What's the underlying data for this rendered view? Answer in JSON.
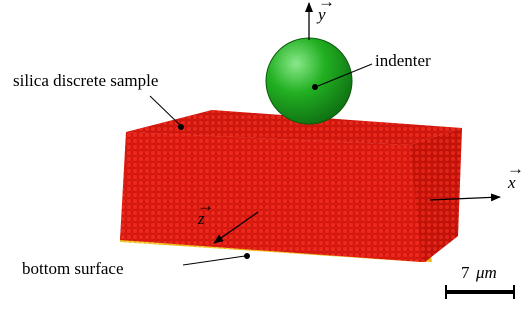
{
  "labels": {
    "sample": "silica discrete sample",
    "indenter": "indenter",
    "bottom": "bottom surface"
  },
  "axes": {
    "x": "x",
    "y": "y",
    "z": "z"
  },
  "scale_bar": {
    "value": "7",
    "unit": "μm"
  },
  "colors": {
    "sample_front": "#e01a10",
    "sample_side": "#c81208",
    "sample_top": "#d8180e",
    "bottom_layer": "#e8b818",
    "indenter_fill": "#22b022",
    "indenter_shade": "#0f6f12",
    "indenter_highlight": "#8ae88a"
  }
}
